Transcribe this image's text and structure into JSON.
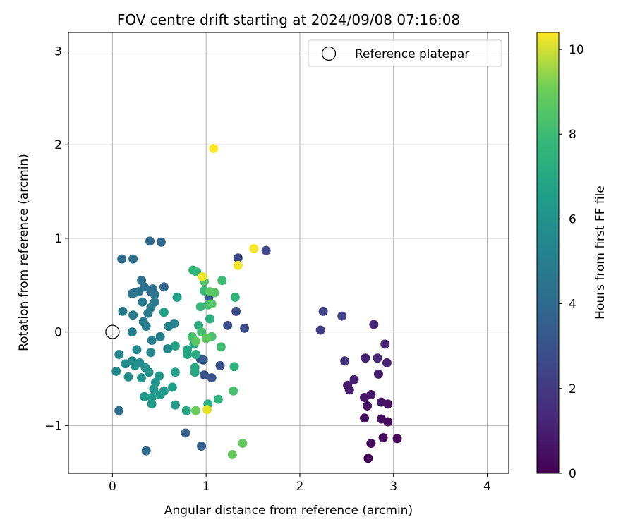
{
  "chart_data": {
    "type": "scatter",
    "title": "FOV centre drift starting at 2024/09/08 07:16:08",
    "xlabel": "Angular distance from reference (arcmin)",
    "ylabel": "Rotation from reference (arcmin)",
    "xlim": [
      -0.47,
      4.23
    ],
    "ylim": [
      -1.51,
      3.2
    ],
    "xticks": [
      0,
      1,
      2,
      3,
      4
    ],
    "xtick_labels": [
      "0",
      "1",
      "2",
      "3",
      "4"
    ],
    "yticks": [
      -1,
      0,
      1,
      2,
      3
    ],
    "ytick_labels": [
      "−1",
      "0",
      "1",
      "2",
      "3"
    ],
    "grid": true,
    "legend": {
      "placement": "top-right",
      "entries": [
        {
          "label": "Reference platepar",
          "marker": "open-circle"
        }
      ]
    },
    "reference_point": {
      "x": 0,
      "y": 0
    },
    "colorbar": {
      "label": "Hours from first FF file",
      "colormap": "viridis",
      "range": [
        0,
        10.4
      ],
      "ticks": [
        0,
        2,
        4,
        6,
        8,
        10
      ],
      "tick_labels": [
        "0",
        "2",
        "4",
        "6",
        "8",
        "10"
      ]
    },
    "points": [
      {
        "x": 2.73,
        "y": -1.35,
        "c": 0.1
      },
      {
        "x": 2.76,
        "y": -1.19,
        "c": 0.2
      },
      {
        "x": 3.04,
        "y": -1.14,
        "c": 0.2
      },
      {
        "x": 2.89,
        "y": -1.13,
        "c": 0.3
      },
      {
        "x": 2.94,
        "y": -0.96,
        "c": 0.3
      },
      {
        "x": 2.87,
        "y": -0.93,
        "c": 0.4
      },
      {
        "x": 2.69,
        "y": -0.92,
        "c": 0.4
      },
      {
        "x": 2.72,
        "y": -0.79,
        "c": 0.5
      },
      {
        "x": 2.94,
        "y": -0.77,
        "c": 0.5
      },
      {
        "x": 2.87,
        "y": -0.75,
        "c": 0.6
      },
      {
        "x": 2.69,
        "y": -0.7,
        "c": 0.6
      },
      {
        "x": 2.76,
        "y": -0.67,
        "c": 0.7
      },
      {
        "x": 2.53,
        "y": -0.62,
        "c": 0.8
      },
      {
        "x": 2.51,
        "y": -0.57,
        "c": 0.8
      },
      {
        "x": 2.58,
        "y": -0.51,
        "c": 0.9
      },
      {
        "x": 2.84,
        "y": -0.45,
        "c": 0.9
      },
      {
        "x": 2.93,
        "y": -0.33,
        "c": 1.0
      },
      {
        "x": 2.7,
        "y": -0.28,
        "c": 1.0
      },
      {
        "x": 2.83,
        "y": -0.28,
        "c": 1.1
      },
      {
        "x": 2.91,
        "y": -0.13,
        "c": 1.1
      },
      {
        "x": 2.79,
        "y": 0.08,
        "c": 1.2
      },
      {
        "x": 2.48,
        "y": -0.31,
        "c": 1.6
      },
      {
        "x": 2.22,
        "y": 0.02,
        "c": 1.9
      },
      {
        "x": 2.45,
        "y": 0.17,
        "c": 2.0
      },
      {
        "x": 2.25,
        "y": 0.22,
        "c": 2.1
      },
      {
        "x": 1.64,
        "y": 0.87,
        "c": 2.2
      },
      {
        "x": 1.34,
        "y": 0.79,
        "c": 2.3
      },
      {
        "x": 1.41,
        "y": 0.04,
        "c": 2.3
      },
      {
        "x": 1.32,
        "y": 0.22,
        "c": 2.4
      },
      {
        "x": 1.23,
        "y": 0.07,
        "c": 2.5
      },
      {
        "x": 1.15,
        "y": -0.36,
        "c": 2.6
      },
      {
        "x": 1.06,
        "y": -0.49,
        "c": 2.7
      },
      {
        "x": 0.98,
        "y": -0.46,
        "c": 2.8
      },
      {
        "x": 0.94,
        "y": -0.29,
        "c": 2.9
      },
      {
        "x": 0.97,
        "y": -0.3,
        "c": 3.0
      },
      {
        "x": 1.03,
        "y": 0.37,
        "c": 3.0
      },
      {
        "x": 0.78,
        "y": -1.08,
        "c": 3.1
      },
      {
        "x": 0.95,
        "y": -1.22,
        "c": 3.2
      },
      {
        "x": 0.41,
        "y": 0.43,
        "c": 3.3
      },
      {
        "x": 0.55,
        "y": 0.48,
        "c": 3.4
      },
      {
        "x": 0.4,
        "y": 0.97,
        "c": 3.5
      },
      {
        "x": 0.52,
        "y": 0.96,
        "c": 3.5
      },
      {
        "x": 0.36,
        "y": -1.27,
        "c": 3.6
      },
      {
        "x": 0.07,
        "y": -0.84,
        "c": 3.7
      },
      {
        "x": 0.1,
        "y": 0.78,
        "c": 3.7
      },
      {
        "x": 0.22,
        "y": 0.78,
        "c": 3.8
      },
      {
        "x": 0.31,
        "y": 0.55,
        "c": 3.8
      },
      {
        "x": 0.34,
        "y": 0.48,
        "c": 3.9
      },
      {
        "x": 0.43,
        "y": 0.46,
        "c": 3.9
      },
      {
        "x": 0.21,
        "y": 0.41,
        "c": 4.0
      },
      {
        "x": 0.24,
        "y": 0.42,
        "c": 4.0
      },
      {
        "x": 0.28,
        "y": 0.43,
        "c": 4.1
      },
      {
        "x": 0.45,
        "y": 0.4,
        "c": 4.1
      },
      {
        "x": 0.32,
        "y": 0.32,
        "c": 4.2
      },
      {
        "x": 0.45,
        "y": 0.32,
        "c": 4.2
      },
      {
        "x": 0.41,
        "y": 0.26,
        "c": 4.3
      },
      {
        "x": 0.38,
        "y": 0.2,
        "c": 4.3
      },
      {
        "x": 0.11,
        "y": 0.22,
        "c": 4.3
      },
      {
        "x": 0.22,
        "y": 0.18,
        "c": 4.4
      },
      {
        "x": 0.33,
        "y": 0.11,
        "c": 4.4
      },
      {
        "x": 0.36,
        "y": 0.06,
        "c": 4.5
      },
      {
        "x": 0.21,
        "y": 0.0,
        "c": 4.5
      },
      {
        "x": 0.42,
        "y": -0.09,
        "c": 4.6
      },
      {
        "x": 0.51,
        "y": -0.05,
        "c": 4.6
      },
      {
        "x": 0.6,
        "y": 0.06,
        "c": 4.7
      },
      {
        "x": 0.66,
        "y": 0.09,
        "c": 4.7
      },
      {
        "x": 0.59,
        "y": -0.18,
        "c": 4.8
      },
      {
        "x": 0.41,
        "y": -0.22,
        "c": 4.8
      },
      {
        "x": 0.26,
        "y": -0.19,
        "c": 4.9
      },
      {
        "x": 0.07,
        "y": -0.24,
        "c": 4.9
      },
      {
        "x": 0.14,
        "y": -0.34,
        "c": 5.0
      },
      {
        "x": 0.04,
        "y": -0.42,
        "c": 5.0
      },
      {
        "x": 0.21,
        "y": -0.31,
        "c": 5.0
      },
      {
        "x": 0.24,
        "y": -0.36,
        "c": 5.1
      },
      {
        "x": 0.29,
        "y": -0.33,
        "c": 5.1
      },
      {
        "x": 0.35,
        "y": -0.38,
        "c": 5.2
      },
      {
        "x": 0.17,
        "y": -0.48,
        "c": 5.2
      },
      {
        "x": 0.31,
        "y": -0.49,
        "c": 5.3
      },
      {
        "x": 0.39,
        "y": -0.43,
        "c": 5.3
      },
      {
        "x": 0.44,
        "y": -0.61,
        "c": 5.4
      },
      {
        "x": 0.46,
        "y": -0.54,
        "c": 5.4
      },
      {
        "x": 0.5,
        "y": -0.47,
        "c": 5.5
      },
      {
        "x": 0.34,
        "y": -0.69,
        "c": 5.5
      },
      {
        "x": 0.42,
        "y": -0.7,
        "c": 5.6
      },
      {
        "x": 0.42,
        "y": -0.77,
        "c": 5.6
      },
      {
        "x": 0.51,
        "y": -0.67,
        "c": 5.7
      },
      {
        "x": 0.55,
        "y": -0.63,
        "c": 5.7
      },
      {
        "x": 0.67,
        "y": -0.78,
        "c": 5.8
      },
      {
        "x": 0.64,
        "y": -0.59,
        "c": 5.8
      },
      {
        "x": 0.67,
        "y": -0.43,
        "c": 5.9
      },
      {
        "x": 0.69,
        "y": 0.37,
        "c": 5.9
      },
      {
        "x": 0.55,
        "y": 0.21,
        "c": 6.0
      },
      {
        "x": 0.67,
        "y": -0.15,
        "c": 6.0
      },
      {
        "x": 0.8,
        "y": -0.19,
        "c": 6.1
      },
      {
        "x": 0.8,
        "y": -0.24,
        "c": 6.1
      },
      {
        "x": 0.87,
        "y": -0.13,
        "c": 6.2
      },
      {
        "x": 0.79,
        "y": -0.84,
        "c": 6.2
      },
      {
        "x": 0.88,
        "y": -0.43,
        "c": 6.3
      },
      {
        "x": 0.88,
        "y": -0.38,
        "c": 6.3
      },
      {
        "x": 0.89,
        "y": -0.24,
        "c": 6.4
      },
      {
        "x": 0.92,
        "y": 0.07,
        "c": 6.4
      },
      {
        "x": 1.04,
        "y": 0.14,
        "c": 6.5
      },
      {
        "x": 1.02,
        "y": -0.77,
        "c": 6.6
      },
      {
        "x": 1.13,
        "y": -0.72,
        "c": 6.7
      },
      {
        "x": 1.3,
        "y": -0.37,
        "c": 6.8
      },
      {
        "x": 1.31,
        "y": 0.37,
        "c": 6.8
      },
      {
        "x": 0.86,
        "y": 0.66,
        "c": 6.9
      },
      {
        "x": 0.9,
        "y": 0.64,
        "c": 6.9
      },
      {
        "x": 0.94,
        "y": 0.27,
        "c": 7.0
      },
      {
        "x": 0.98,
        "y": 0.44,
        "c": 7.0
      },
      {
        "x": 1.02,
        "y": 0.29,
        "c": 7.1
      },
      {
        "x": 1.17,
        "y": 0.55,
        "c": 7.1
      },
      {
        "x": 1.16,
        "y": -0.16,
        "c": 7.2
      },
      {
        "x": 0.95,
        "y": 0.0,
        "c": 7.3
      },
      {
        "x": 0.85,
        "y": -0.05,
        "c": 7.3
      },
      {
        "x": 1.06,
        "y": -0.05,
        "c": 7.4
      },
      {
        "x": 1.29,
        "y": -0.63,
        "c": 7.4
      },
      {
        "x": 0.98,
        "y": 0.54,
        "c": 7.5
      },
      {
        "x": 1.06,
        "y": 0.3,
        "c": 7.6
      },
      {
        "x": 1.09,
        "y": 0.42,
        "c": 7.6
      },
      {
        "x": 1.04,
        "y": 0.43,
        "c": 7.7
      },
      {
        "x": 0.89,
        "y": -0.1,
        "c": 7.7
      },
      {
        "x": 1.0,
        "y": -0.07,
        "c": 7.8
      },
      {
        "x": 1.28,
        "y": -1.31,
        "c": 7.9
      },
      {
        "x": 1.39,
        "y": -1.19,
        "c": 7.9
      },
      {
        "x": 0.89,
        "y": -0.84,
        "c": 8.0
      },
      {
        "x": 1.08,
        "y": 1.96,
        "c": 10.4
      },
      {
        "x": 1.51,
        "y": 0.89,
        "c": 10.3
      },
      {
        "x": 1.34,
        "y": 0.71,
        "c": 10.2
      },
      {
        "x": 0.96,
        "y": 0.59,
        "c": 10.1
      },
      {
        "x": 1.01,
        "y": -0.83,
        "c": 10.0
      }
    ]
  }
}
